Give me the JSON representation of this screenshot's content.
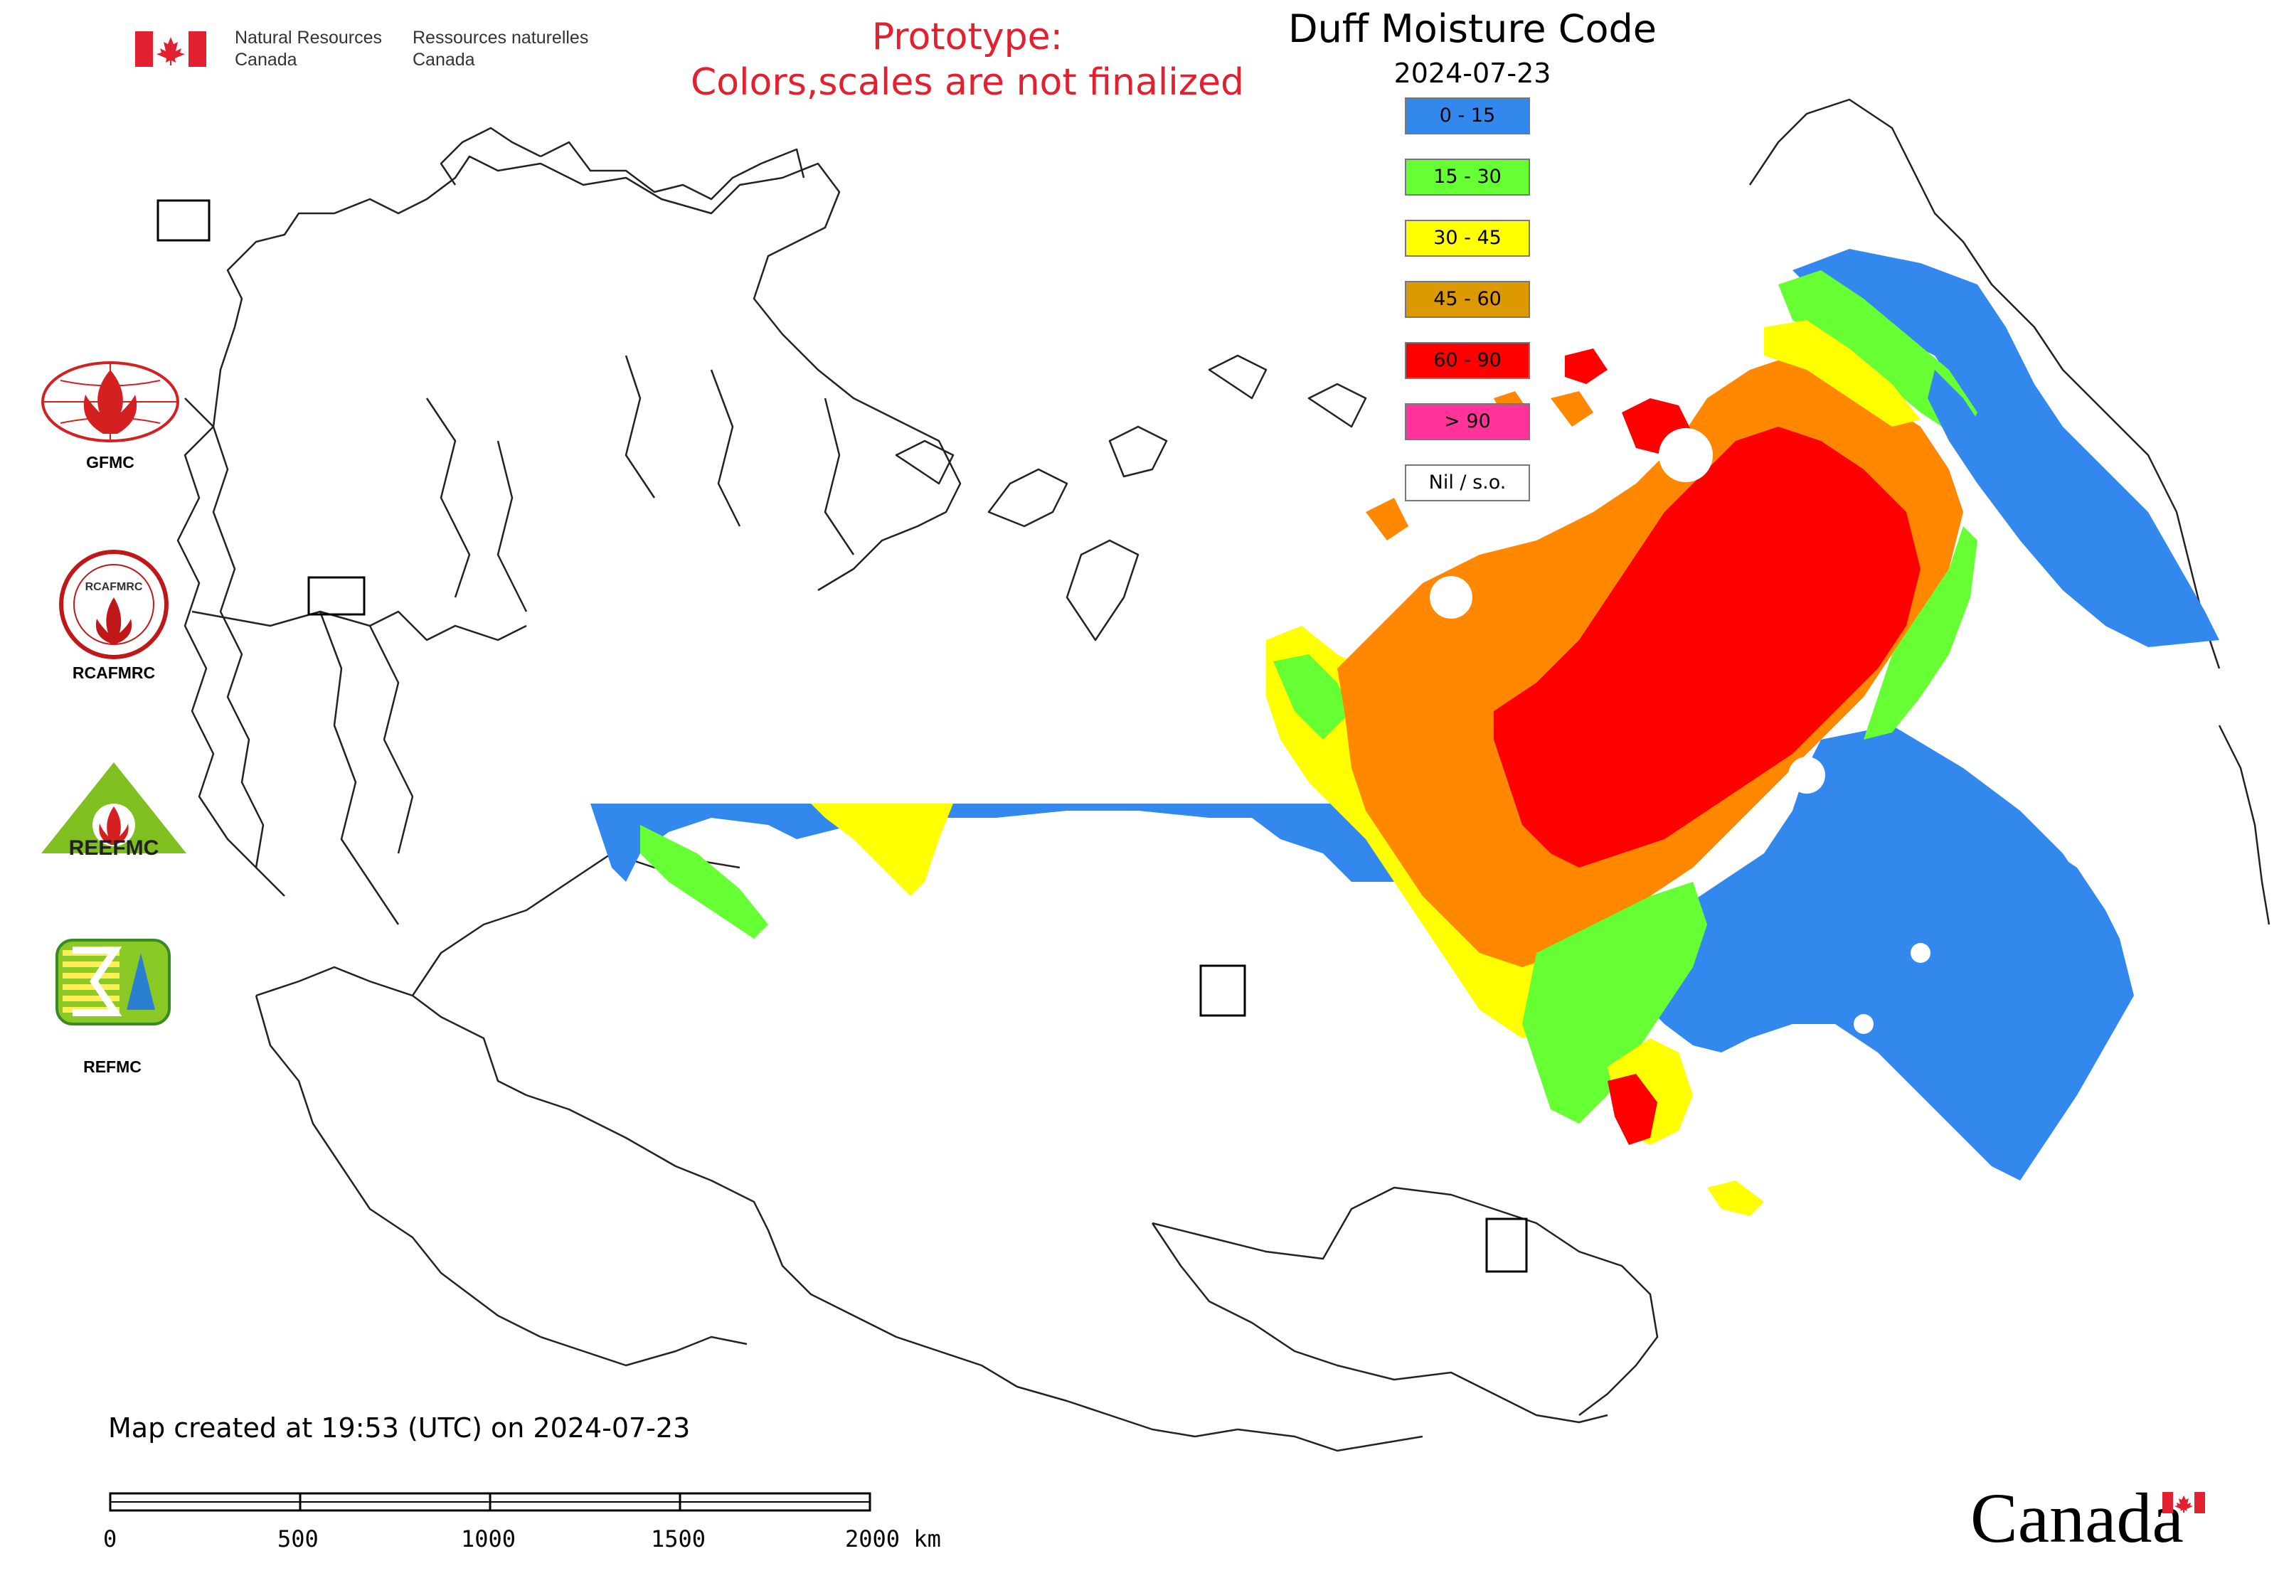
{
  "header": {
    "dept_en_line1": "Natural Resources",
    "dept_en_line2": "Canada",
    "dept_fr_line1": "Ressources naturelles",
    "dept_fr_line2": "Canada"
  },
  "prototype": {
    "line1": "Prototype:",
    "line2": "Colors,scales are not finalized"
  },
  "map": {
    "title": "Duff Moisture Code",
    "date": "2024-07-23",
    "legend": [
      {
        "label": "0 - 15",
        "color": "#3388ee"
      },
      {
        "label": "15 - 30",
        "color": "#66ff33"
      },
      {
        "label": "30 - 45",
        "color": "#ffff00"
      },
      {
        "label": "45 - 60",
        "color": "#dd9900"
      },
      {
        "label": "60 - 90",
        "color": "#ff0000"
      },
      {
        "label": "> 90",
        "color": "#ff3399"
      },
      {
        "label": "Nil / s.o.",
        "color": "#ffffff"
      }
    ]
  },
  "logos": {
    "gfmc": "GFMC",
    "rcafmrc": "RCAFMRC",
    "reefmc": "REEFMC",
    "refmc": "REFMC",
    "rcafmrc_ring_text": "RCAFMRC",
    "reefmc_wordmark": "REEFMC"
  },
  "footer": {
    "created": "Map created at 19:53 (UTC) on 2024-07-23",
    "scale_labels": [
      "0",
      "500",
      "1000",
      "1500",
      "2000 km"
    ],
    "wordmark": "Canada"
  }
}
